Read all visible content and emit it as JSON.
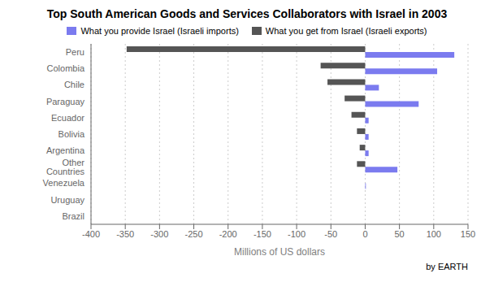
{
  "chart_data": {
    "type": "bar",
    "orientation": "horizontal",
    "title": "Top South American Goods and Services Collaborators with Israel in 2003",
    "xlabel": "Millions of US dollars",
    "categories": [
      "Peru",
      "Colombia",
      "Chile",
      "Paraguay",
      "Ecuador",
      "Bolivia",
      "Argentina",
      "Other Countries",
      "Venezuela",
      "Uruguay",
      "Brazil"
    ],
    "series": [
      {
        "name": "What you provide Israel (Israeli imports)",
        "color": "#7b7bef",
        "values": [
          130,
          105,
          20,
          78,
          5,
          5,
          5,
          47,
          1,
          0,
          0
        ]
      },
      {
        "name": "What you get from Israel (Israeli exports)",
        "color": "#555555",
        "values": [
          -348,
          -65,
          -55,
          -30,
          -20,
          -12,
          -8,
          -12,
          0,
          0,
          0
        ]
      }
    ],
    "xlim": [
      -400,
      150
    ],
    "xticks": [
      -400,
      -350,
      -300,
      -250,
      -200,
      -150,
      -100,
      -50,
      0,
      50,
      100,
      150
    ],
    "grid": true,
    "legend": "top",
    "annotations": [
      "by EARTH"
    ]
  }
}
